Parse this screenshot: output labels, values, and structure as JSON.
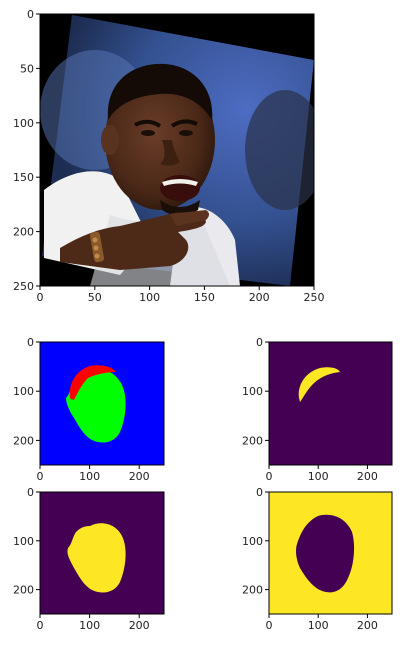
{
  "chart_data": [
    {
      "type": "image",
      "title": "",
      "description_visible": "rotated face photo on black background",
      "xlim": [
        0,
        250
      ],
      "ylim": [
        250,
        0
      ],
      "xticks": [
        0,
        50,
        100,
        150,
        200,
        250
      ],
      "yticks": [
        0,
        50,
        100,
        150,
        200,
        250
      ],
      "colors": {
        "background": "#000000",
        "sky": "#3a57a8",
        "skin": "#4a2b1e",
        "towel": "#eeeeee"
      }
    },
    {
      "type": "heatmap",
      "title": "",
      "description_visible": "segmentation map: background, hair, face",
      "xlim": [
        0,
        250
      ],
      "ylim": [
        250,
        0
      ],
      "xticks": [
        0,
        100,
        200
      ],
      "yticks": [
        0,
        100,
        200
      ],
      "colors": {
        "background": "#0000ff",
        "hair": "#ff0000",
        "face": "#00ff00"
      }
    },
    {
      "type": "heatmap",
      "title": "",
      "description_visible": "binary mask: hair",
      "xlim": [
        0,
        250
      ],
      "ylim": [
        250,
        0
      ],
      "xticks": [
        0,
        100,
        200
      ],
      "yticks": [
        0,
        100,
        200
      ],
      "colors": {
        "low": "#440154",
        "high": "#fde725"
      }
    },
    {
      "type": "heatmap",
      "title": "",
      "description_visible": "binary mask: face",
      "xlim": [
        0,
        250
      ],
      "ylim": [
        250,
        0
      ],
      "xticks": [
        0,
        100,
        200
      ],
      "yticks": [
        0,
        100,
        200
      ],
      "colors": {
        "low": "#440154",
        "high": "#fde725"
      }
    },
    {
      "type": "heatmap",
      "title": "",
      "description_visible": "binary mask: background",
      "xlim": [
        0,
        250
      ],
      "ylim": [
        250,
        0
      ],
      "xticks": [
        0,
        100,
        200
      ],
      "yticks": [
        0,
        100,
        200
      ],
      "colors": {
        "low": "#440154",
        "high": "#fde725"
      }
    }
  ]
}
